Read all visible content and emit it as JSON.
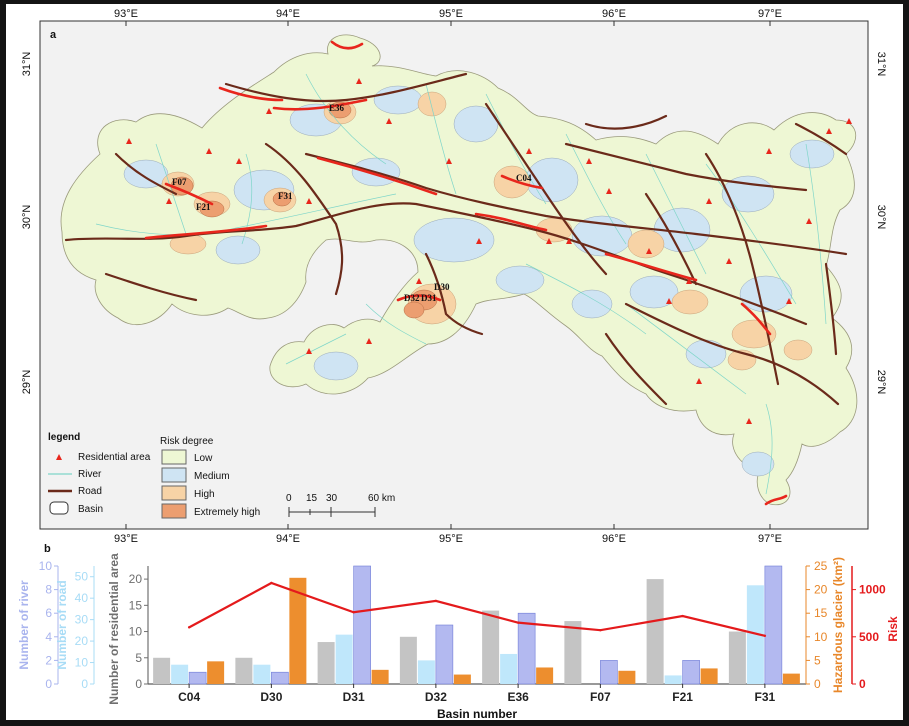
{
  "panel_a": {
    "label": "a",
    "top_lon_labels": [
      "93°E",
      "94°E",
      "95°E",
      "96°E",
      "97°E"
    ],
    "bottom_lon_labels": [
      "93°E",
      "94°E",
      "95°E",
      "96°E",
      "97°E"
    ],
    "left_lat_labels": [
      "31°N",
      "30°N",
      "29°N"
    ],
    "right_lat_labels": [
      "31°N",
      "30°N",
      "29°N"
    ],
    "basin_labels": [
      "E36",
      "C04",
      "F07",
      "F21",
      "F31",
      "D30",
      "D32",
      "D31"
    ],
    "legend": {
      "title": "legend",
      "items": [
        "Residential area",
        "River",
        "Road",
        "Basin"
      ]
    },
    "risk_degree": {
      "title": "Risk degree",
      "items": [
        {
          "label": "Low",
          "color": "#eef7d4"
        },
        {
          "label": "Medium",
          "color": "#cfe4f3"
        },
        {
          "label": "High",
          "color": "#f7d3a6"
        },
        {
          "label": "Extremely high",
          "color": "#ec9e70"
        }
      ]
    },
    "scale_bar": [
      "0",
      "15",
      "30",
      "60 km"
    ],
    "colors": {
      "road": "#6b2a1a",
      "river": "#7fd6c9",
      "residential": "#e8261c",
      "basin_line": "#8a8a6a"
    }
  },
  "panel_b": {
    "label": "b",
    "xlabel": "Basin number",
    "axes": {
      "river": {
        "label": "Number of river",
        "ticks": [
          "0",
          "2",
          "4",
          "6",
          "8",
          "10"
        ],
        "color": "#a9b4ee"
      },
      "road": {
        "label": "Number of road",
        "ticks": [
          "0",
          "10",
          "20",
          "30",
          "40",
          "50"
        ],
        "color": "#a8dcf6"
      },
      "residential": {
        "label": "Number of residential area",
        "ticks": [
          "0",
          "5",
          "10",
          "15",
          "20"
        ],
        "color": "#6f6f6f"
      },
      "glacier": {
        "label": "Hazardous glacier (km²)",
        "ticks": [
          "0",
          "5",
          "10",
          "15",
          "20",
          "25"
        ],
        "color": "#e8872a"
      },
      "risk": {
        "label": "Risk",
        "ticks": [
          "0",
          "500",
          "1000"
        ],
        "color": "#e41a1c"
      }
    }
  },
  "chart_data": {
    "type": "bar",
    "categories": [
      "C04",
      "D30",
      "D31",
      "D32",
      "E36",
      "F07",
      "F21",
      "F31"
    ],
    "xlabel": "Basin number",
    "series": [
      {
        "name": "Number of residential area",
        "axis": "residential",
        "color": "#c4c4c4",
        "values": [
          5,
          5,
          8,
          9,
          14,
          12,
          20,
          10
        ]
      },
      {
        "name": "Number of road",
        "axis": "road",
        "color": "#bfe7fb",
        "values": [
          9,
          9,
          23,
          11,
          14,
          0,
          4,
          46
        ]
      },
      {
        "name": "Number of river",
        "axis": "river",
        "color": "#b3b9f0",
        "values": [
          1,
          1,
          10,
          5,
          6,
          2,
          2,
          10
        ]
      },
      {
        "name": "Hazardous glacier (km²)",
        "axis": "glacier",
        "color": "#ed8e2e",
        "values": [
          4.8,
          22.5,
          3,
          2,
          3.5,
          2.8,
          3.3,
          2.2
        ]
      },
      {
        "name": "Risk",
        "axis": "risk",
        "type": "line",
        "color": "#e41a1c",
        "values": [
          600,
          1070,
          760,
          880,
          650,
          570,
          720,
          510
        ]
      }
    ],
    "ylim": {
      "river": [
        0,
        10
      ],
      "road": [
        0,
        55
      ],
      "residential": [
        0,
        22.5
      ],
      "glacier": [
        0,
        25
      ],
      "risk": [
        0,
        1250
      ]
    }
  }
}
